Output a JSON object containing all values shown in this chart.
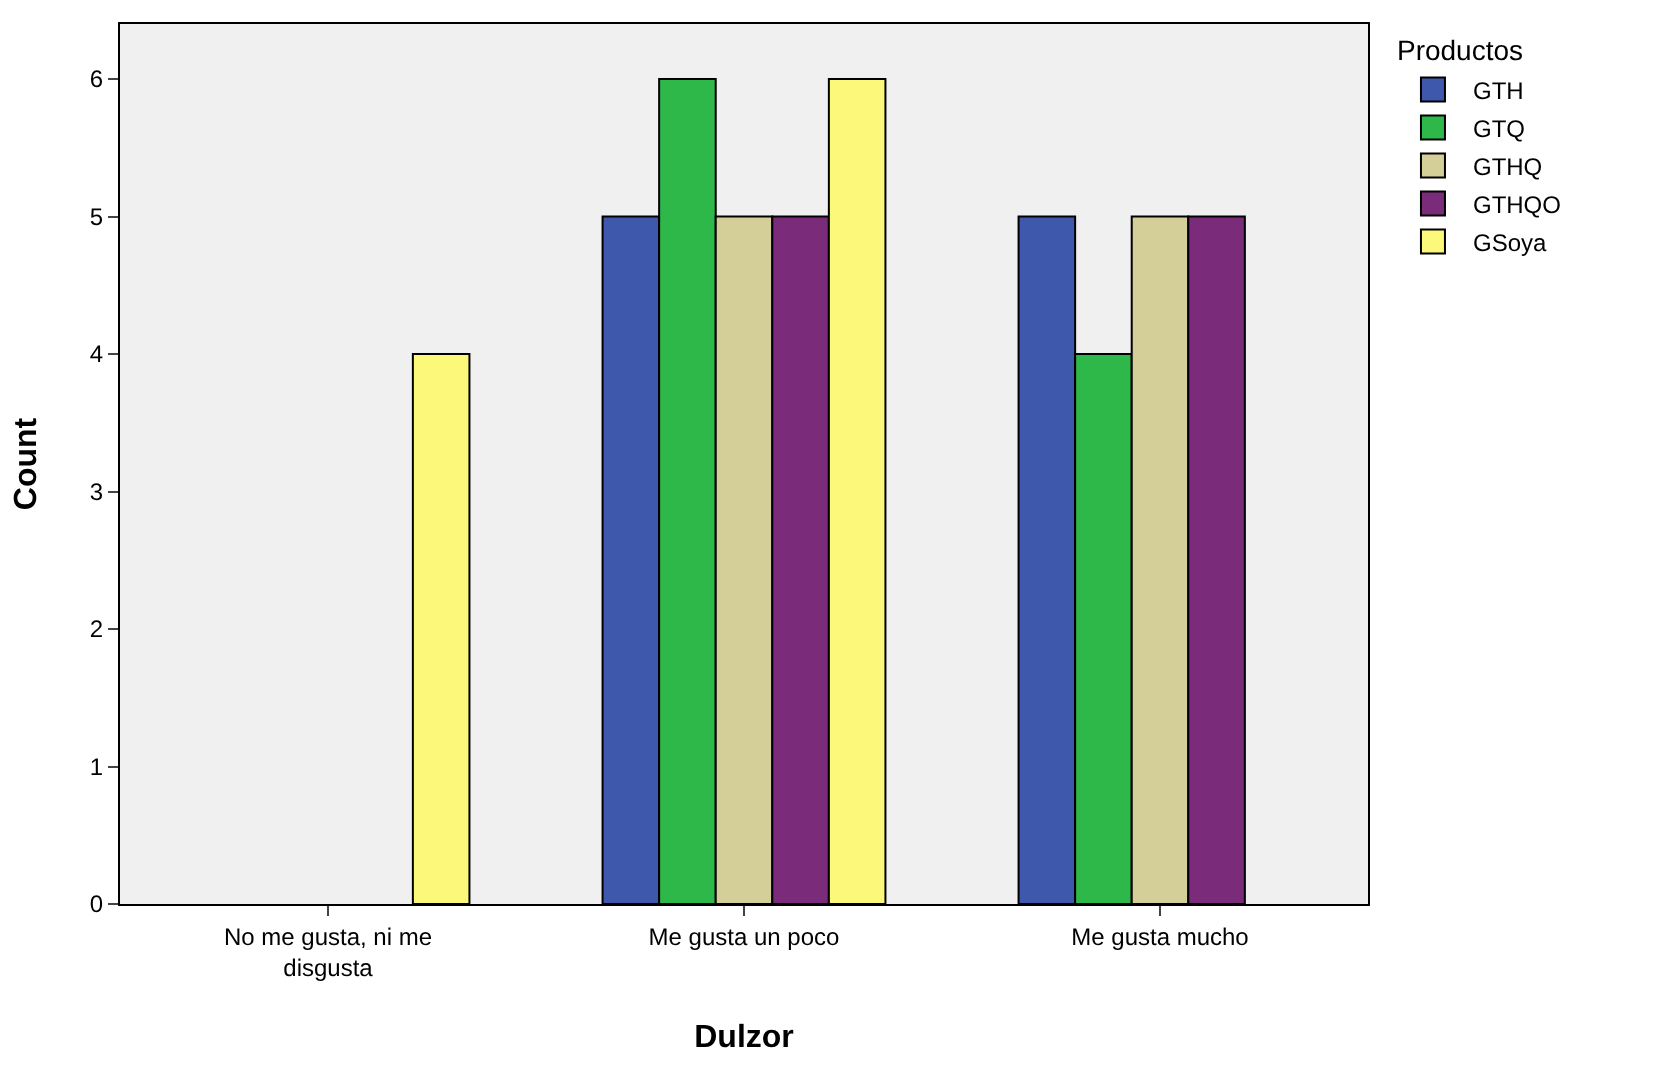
{
  "chart_data": {
    "type": "bar",
    "xlabel": "Dulzor",
    "ylabel": "Count",
    "legend_title": "Productos",
    "categories": [
      "No me gusta, ni me disgusta",
      "Me gusta un poco",
      "Me gusta mucho"
    ],
    "series": [
      {
        "name": "GTH",
        "color": "#3e58ac",
        "values": [
          null,
          5,
          5
        ]
      },
      {
        "name": "GTQ",
        "color": "#2fb84a",
        "values": [
          null,
          6,
          4
        ]
      },
      {
        "name": "GTHQ",
        "color": "#d4cf98",
        "values": [
          null,
          5,
          5
        ]
      },
      {
        "name": "GTHQO",
        "color": "#7a2b7a",
        "values": [
          null,
          5,
          5
        ]
      },
      {
        "name": "GSoya",
        "color": "#fbf87a",
        "values": [
          4,
          6,
          null
        ]
      }
    ],
    "ylim": [
      0,
      6.4
    ],
    "yticks": [
      0,
      1,
      2,
      3,
      4,
      5,
      6
    ],
    "grid": false,
    "legend": "top right"
  }
}
